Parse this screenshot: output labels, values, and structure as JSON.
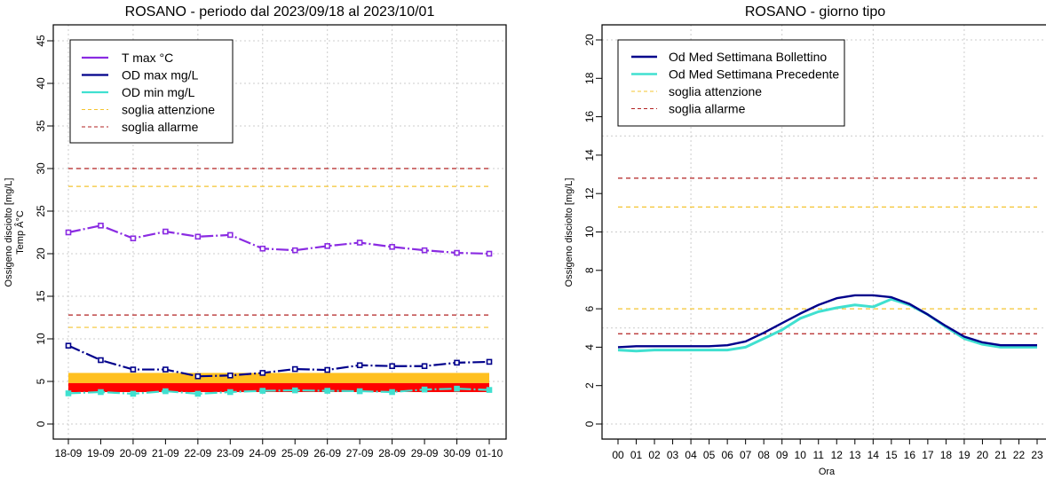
{
  "chart_data": [
    {
      "type": "line",
      "title": "ROSANO - periodo dal 2023/09/18 al 2023/10/01",
      "xlabel": "",
      "ylabel_lines": [
        "Ossigeno disciolto [mg/L]",
        "Temp Â°C"
      ],
      "ylim": [
        0,
        45
      ],
      "yticks": [
        0,
        5,
        10,
        15,
        20,
        25,
        30,
        35,
        40,
        45
      ],
      "grid": true,
      "categories": [
        "18-09",
        "19-09",
        "20-09",
        "21-09",
        "22-09",
        "23-09",
        "24-09",
        "25-09",
        "26-09",
        "27-09",
        "28-09",
        "29-09",
        "30-09",
        "01-10"
      ],
      "series": [
        {
          "name": "T max °C",
          "color": "#8a2be2",
          "style": "line-markers",
          "values": [
            22.5,
            23.3,
            21.8,
            22.6,
            22.0,
            22.2,
            20.6,
            20.4,
            20.9,
            21.3,
            20.8,
            20.4,
            20.1,
            20.0
          ]
        },
        {
          "name": "OD max mg/L",
          "color": "#00008b",
          "style": "line-markers",
          "values": [
            9.2,
            7.5,
            6.4,
            6.4,
            5.6,
            5.7,
            6.0,
            6.45,
            6.35,
            6.9,
            6.8,
            6.8,
            7.2,
            7.3
          ]
        },
        {
          "name": "OD min mg/L",
          "color": "#40e0d0",
          "style": "line-markers",
          "values": [
            3.6,
            3.75,
            3.55,
            3.85,
            3.55,
            3.75,
            3.9,
            3.95,
            3.9,
            3.85,
            3.75,
            4.05,
            4.15,
            4.0
          ]
        }
      ],
      "thresholds": [
        {
          "name": "soglia attenzione",
          "color": "#f4c430",
          "values": [
            27.9,
            11.35
          ]
        },
        {
          "name": "soglia allarme",
          "color": "#b22222",
          "values": [
            30.0,
            12.8
          ]
        }
      ],
      "bands": [
        {
          "name": "attention band",
          "color": "#ffc020",
          "from": 4.8,
          "to": 6.0
        },
        {
          "name": "alarm band",
          "color": "#ff0000",
          "from": 3.75,
          "to": 4.8
        }
      ],
      "legend": {
        "position": "top-left",
        "entries": [
          {
            "label": "T max °C",
            "color": "#8a2be2",
            "dash": false
          },
          {
            "label": "OD max mg/L",
            "color": "#00008b",
            "dash": false
          },
          {
            "label": "OD min mg/L",
            "color": "#40e0d0",
            "dash": false
          },
          {
            "label": "soglia attenzione",
            "color": "#f4c430",
            "dash": true
          },
          {
            "label": "soglia allarme",
            "color": "#b22222",
            "dash": true
          }
        ]
      }
    },
    {
      "type": "line",
      "title": "ROSANO - giorno tipo",
      "xlabel": "Ora",
      "ylabel": "Ossigeno disciolto [mg/L]",
      "ylim": [
        0,
        20
      ],
      "yticks": [
        0,
        2,
        4,
        6,
        8,
        10,
        12,
        14,
        16,
        18,
        20
      ],
      "ygrid": [
        0,
        5,
        10,
        15,
        20
      ],
      "xgrid_hours": [
        4,
        9,
        14,
        19
      ],
      "grid": true,
      "categories": [
        "00",
        "01",
        "02",
        "03",
        "04",
        "05",
        "06",
        "07",
        "08",
        "09",
        "10",
        "11",
        "12",
        "13",
        "14",
        "15",
        "16",
        "17",
        "18",
        "19",
        "20",
        "21",
        "22",
        "23"
      ],
      "series": [
        {
          "name": "Od Med Settimana Bollettino",
          "color": "#00008b",
          "values": [
            4.0,
            4.05,
            4.05,
            4.05,
            4.05,
            4.05,
            4.1,
            4.3,
            4.75,
            5.25,
            5.75,
            6.2,
            6.55,
            6.7,
            6.7,
            6.6,
            6.25,
            5.7,
            5.1,
            4.55,
            4.25,
            4.1,
            4.1,
            4.1
          ]
        },
        {
          "name": "Od Med Settimana Precedente",
          "color": "#40e0d0",
          "values": [
            3.85,
            3.8,
            3.85,
            3.85,
            3.85,
            3.85,
            3.85,
            4.0,
            4.45,
            4.9,
            5.5,
            5.85,
            6.05,
            6.2,
            6.1,
            6.5,
            6.2,
            5.7,
            5.05,
            4.45,
            4.15,
            4.0,
            4.0,
            4.0
          ]
        }
      ],
      "thresholds": [
        {
          "name": "soglia attenzione",
          "color": "#f4c430",
          "values": [
            6.0,
            11.3
          ]
        },
        {
          "name": "soglia allarme",
          "color": "#b22222",
          "values": [
            4.7,
            12.8
          ]
        }
      ],
      "legend": {
        "position": "top-left",
        "entries": [
          {
            "label": "Od Med Settimana Bollettino",
            "color": "#00008b",
            "dash": false
          },
          {
            "label": "Od Med Settimana Precedente",
            "color": "#40e0d0",
            "dash": false
          },
          {
            "label": "soglia attenzione",
            "color": "#f4c430",
            "dash": true
          },
          {
            "label": "soglia allarme",
            "color": "#b22222",
            "dash": true
          }
        ]
      }
    }
  ]
}
